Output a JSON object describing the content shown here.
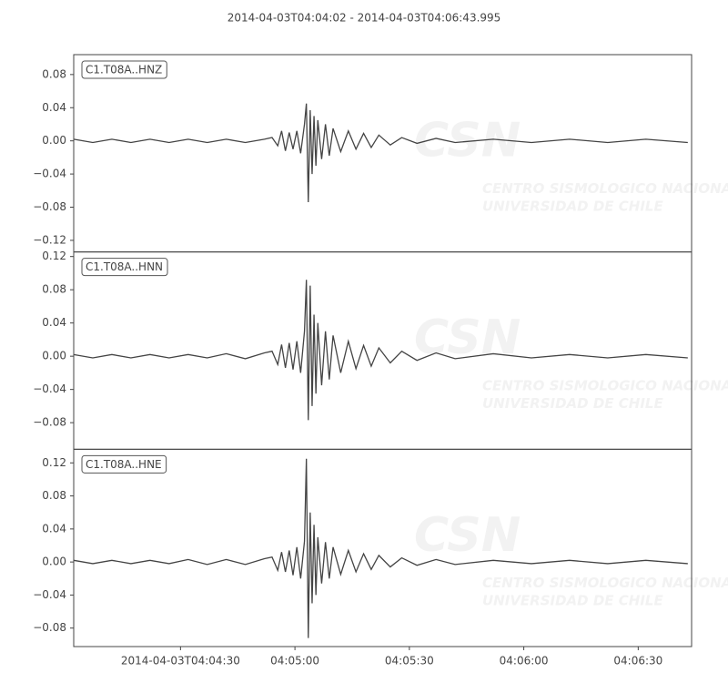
{
  "title": "2014-04-03T04:04:02  -  2014-04-03T04:06:43.995",
  "watermark": {
    "logo": "CSN",
    "line1": "CENTRO SISMOLOGICO NACIONAL",
    "line2": "UNIVERSIDAD DE CHILE"
  },
  "chart_data": [
    {
      "type": "line",
      "title": "C1.T08A..HNZ",
      "color": "#444444",
      "xlim": [
        "2014-04-03T04:04:02",
        "2014-04-03T04:06:43.995"
      ],
      "ylim": [
        -0.134,
        0.104
      ],
      "yticks": [
        {
          "value": -0.12,
          "label": "−0.12"
        },
        {
          "value": -0.08,
          "label": "−0.08"
        },
        {
          "value": -0.04,
          "label": "−0.04"
        },
        {
          "value": 0,
          "label": "0.00"
        },
        0.04,
        0.08
      ],
      "x": [
        "2014-04-03T04:04:02",
        "2014-04-03T04:04:07",
        "2014-04-03T04:04:12",
        "2014-04-03T04:04:17",
        "2014-04-03T04:04:22",
        "2014-04-03T04:04:27",
        "2014-04-03T04:04:32",
        "2014-04-03T04:04:37",
        "2014-04-03T04:04:42",
        "2014-04-03T04:04:47",
        "2014-04-03T04:04:52",
        "2014-04-03T04:04:54",
        "2014-04-03T04:04:55.5",
        "2014-04-03T04:04:56.5",
        "2014-04-03T04:04:57.5",
        "2014-04-03T04:04:58.5",
        "2014-04-03T04:04:59.5",
        "2014-04-03T04:05:00.5",
        "2014-04-03T04:05:01.5",
        "2014-04-03T04:05:02.5",
        "2014-04-03T04:05:03",
        "2014-04-03T04:05:03.5",
        "2014-04-03T04:05:04",
        "2014-04-03T04:05:04.5",
        "2014-04-03T04:05:05",
        "2014-04-03T04:05:05.5",
        "2014-04-03T04:05:06",
        "2014-04-03T04:05:07",
        "2014-04-03T04:05:08",
        "2014-04-03T04:05:09",
        "2014-04-03T04:05:10",
        "2014-04-03T04:05:12",
        "2014-04-03T04:05:14",
        "2014-04-03T04:05:16",
        "2014-04-03T04:05:18",
        "2014-04-03T04:05:20",
        "2014-04-03T04:05:22",
        "2014-04-03T04:05:25",
        "2014-04-03T04:05:28",
        "2014-04-03T04:05:32",
        "2014-04-03T04:05:37",
        "2014-04-03T04:05:42",
        "2014-04-03T04:05:52",
        "2014-04-03T04:06:02",
        "2014-04-03T04:06:12",
        "2014-04-03T04:06:22",
        "2014-04-03T04:06:32",
        "2014-04-03T04:06:43"
      ],
      "values": [
        0.002,
        -0.002,
        0.002,
        -0.002,
        0.002,
        -0.002,
        0.002,
        -0.002,
        0.002,
        -0.002,
        0.002,
        0.004,
        -0.006,
        0.012,
        -0.012,
        0.01,
        -0.01,
        0.012,
        -0.015,
        0.02,
        0.045,
        -0.074,
        0.037,
        -0.04,
        0.03,
        -0.03,
        0.025,
        -0.022,
        0.02,
        -0.018,
        0.015,
        -0.013,
        0.012,
        -0.01,
        0.009,
        -0.008,
        0.007,
        -0.005,
        0.004,
        -0.003,
        0.003,
        -0.002,
        0.002,
        -0.002,
        0.002,
        -0.002,
        0.002,
        -0.002
      ]
    },
    {
      "type": "line",
      "title": "C1.T08A..HNN",
      "color": "#444444",
      "xlim": [
        "2014-04-03T04:04:02",
        "2014-04-03T04:06:43.995"
      ],
      "ylim": [
        -0.112,
        0.1255
      ],
      "yticks": [
        {
          "value": -0.08,
          "label": "−0.08"
        },
        {
          "value": -0.04,
          "label": "−0.04"
        },
        {
          "value": 0,
          "label": "0.00"
        },
        0.04,
        0.08,
        0.12
      ],
      "x": [
        "2014-04-03T04:04:02",
        "2014-04-03T04:04:07",
        "2014-04-03T04:04:12",
        "2014-04-03T04:04:17",
        "2014-04-03T04:04:22",
        "2014-04-03T04:04:27",
        "2014-04-03T04:04:32",
        "2014-04-03T04:04:37",
        "2014-04-03T04:04:42",
        "2014-04-03T04:04:47",
        "2014-04-03T04:04:52",
        "2014-04-03T04:04:54",
        "2014-04-03T04:04:55.5",
        "2014-04-03T04:04:56.5",
        "2014-04-03T04:04:57.5",
        "2014-04-03T04:04:58.5",
        "2014-04-03T04:04:59.5",
        "2014-04-03T04:05:00.5",
        "2014-04-03T04:05:01.5",
        "2014-04-03T04:05:02.5",
        "2014-04-03T04:05:03",
        "2014-04-03T04:05:03.5",
        "2014-04-03T04:05:04",
        "2014-04-03T04:05:04.5",
        "2014-04-03T04:05:05",
        "2014-04-03T04:05:05.5",
        "2014-04-03T04:05:06",
        "2014-04-03T04:05:07",
        "2014-04-03T04:05:08",
        "2014-04-03T04:05:09",
        "2014-04-03T04:05:10",
        "2014-04-03T04:05:12",
        "2014-04-03T04:05:14",
        "2014-04-03T04:05:16",
        "2014-04-03T04:05:18",
        "2014-04-03T04:05:20",
        "2014-04-03T04:05:22",
        "2014-04-03T04:05:25",
        "2014-04-03T04:05:28",
        "2014-04-03T04:05:32",
        "2014-04-03T04:05:37",
        "2014-04-03T04:05:42",
        "2014-04-03T04:05:52",
        "2014-04-03T04:06:02",
        "2014-04-03T04:06:12",
        "2014-04-03T04:06:22",
        "2014-04-03T04:06:32",
        "2014-04-03T04:06:43"
      ],
      "values": [
        0.002,
        -0.002,
        0.002,
        -0.002,
        0.002,
        -0.002,
        0.002,
        -0.002,
        0.003,
        -0.003,
        0.004,
        0.006,
        -0.01,
        0.014,
        -0.014,
        0.016,
        -0.016,
        0.018,
        -0.02,
        0.03,
        0.092,
        -0.077,
        0.085,
        -0.06,
        0.05,
        -0.045,
        0.04,
        -0.035,
        0.03,
        -0.028,
        0.025,
        -0.02,
        0.018,
        -0.015,
        0.013,
        -0.012,
        0.01,
        -0.008,
        0.006,
        -0.005,
        0.004,
        -0.003,
        0.003,
        -0.002,
        0.002,
        -0.002,
        0.002,
        -0.002
      ]
    },
    {
      "type": "line",
      "title": "C1.T08A..HNE",
      "color": "#444444",
      "xlim": [
        "2014-04-03T04:04:02",
        "2014-04-03T04:06:43.995"
      ],
      "ylim": [
        -0.1024,
        0.1365
      ],
      "yticks": [
        {
          "value": -0.08,
          "label": "−0.08"
        },
        {
          "value": -0.04,
          "label": "−0.04"
        },
        {
          "value": 0,
          "label": "0.00"
        },
        0.04,
        0.08,
        0.12
      ],
      "xticks": [
        "2014-04-03T04:04:30",
        {
          "value": "2014-04-03T04:05:00",
          "label": "04:05:00"
        },
        {
          "value": "2014-04-03T04:05:30",
          "label": "04:05:30"
        },
        {
          "value": "2014-04-03T04:06:00",
          "label": "04:06:00"
        },
        {
          "value": "2014-04-03T04:06:30",
          "label": "04:06:30"
        }
      ],
      "x": [
        "2014-04-03T04:04:02",
        "2014-04-03T04:04:07",
        "2014-04-03T04:04:12",
        "2014-04-03T04:04:17",
        "2014-04-03T04:04:22",
        "2014-04-03T04:04:27",
        "2014-04-03T04:04:32",
        "2014-04-03T04:04:37",
        "2014-04-03T04:04:42",
        "2014-04-03T04:04:47",
        "2014-04-03T04:04:52",
        "2014-04-03T04:04:54",
        "2014-04-03T04:04:55.5",
        "2014-04-03T04:04:56.5",
        "2014-04-03T04:04:57.5",
        "2014-04-03T04:04:58.5",
        "2014-04-03T04:04:59.5",
        "2014-04-03T04:05:00.5",
        "2014-04-03T04:05:01.5",
        "2014-04-03T04:05:02.5",
        "2014-04-03T04:05:03",
        "2014-04-03T04:05:03.5",
        "2014-04-03T04:05:04",
        "2014-04-03T04:05:04.5",
        "2014-04-03T04:05:05",
        "2014-04-03T04:05:05.5",
        "2014-04-03T04:05:06",
        "2014-04-03T04:05:07",
        "2014-04-03T04:05:08",
        "2014-04-03T04:05:09",
        "2014-04-03T04:05:10",
        "2014-04-03T04:05:12",
        "2014-04-03T04:05:14",
        "2014-04-03T04:05:16",
        "2014-04-03T04:05:18",
        "2014-04-03T04:05:20",
        "2014-04-03T04:05:22",
        "2014-04-03T04:05:25",
        "2014-04-03T04:05:28",
        "2014-04-03T04:05:32",
        "2014-04-03T04:05:37",
        "2014-04-03T04:05:42",
        "2014-04-03T04:05:52",
        "2014-04-03T04:06:02",
        "2014-04-03T04:06:12",
        "2014-04-03T04:06:22",
        "2014-04-03T04:06:32",
        "2014-04-03T04:06:43"
      ],
      "values": [
        0.002,
        -0.002,
        0.002,
        -0.002,
        0.002,
        -0.002,
        0.003,
        -0.003,
        0.003,
        -0.003,
        0.004,
        0.006,
        -0.01,
        0.012,
        -0.012,
        0.014,
        -0.016,
        0.018,
        -0.02,
        0.025,
        0.125,
        -0.092,
        0.06,
        -0.05,
        0.045,
        -0.04,
        0.03,
        -0.026,
        0.024,
        -0.02,
        0.018,
        -0.015,
        0.014,
        -0.012,
        0.01,
        -0.009,
        0.008,
        -0.006,
        0.005,
        -0.004,
        0.003,
        -0.003,
        0.002,
        -0.002,
        0.002,
        -0.002,
        0.002,
        -0.002
      ]
    }
  ]
}
